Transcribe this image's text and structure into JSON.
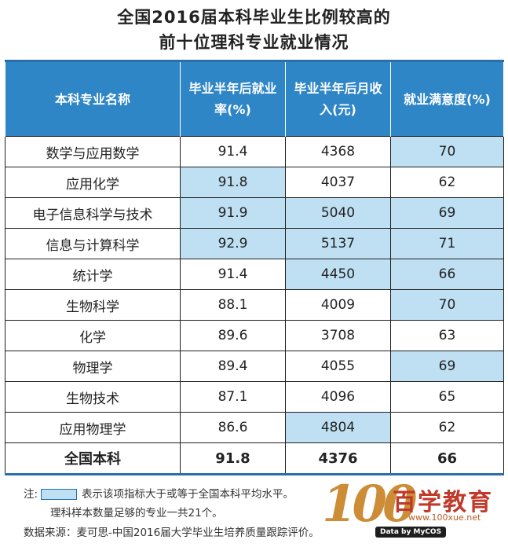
{
  "title": {
    "line1": "全国2016届本科毕业生比例较高的",
    "line2": "前十位理科专业就业情况"
  },
  "table": {
    "headers": [
      "本科专业名称",
      "毕业半年后就业率(%)",
      "毕业半年后月收入(元)",
      "就业满意度(%)"
    ],
    "rows": [
      {
        "name": "数学与应用数学",
        "rate": "91.4",
        "income": "4368",
        "satisfaction": "70"
      },
      {
        "name": "应用化学",
        "rate": "91.8",
        "income": "4037",
        "satisfaction": "62"
      },
      {
        "name": "电子信息科学与技术",
        "rate": "91.9",
        "income": "5040",
        "satisfaction": "69"
      },
      {
        "name": "信息与计算科学",
        "rate": "92.9",
        "income": "5137",
        "satisfaction": "71"
      },
      {
        "name": "统计学",
        "rate": "91.4",
        "income": "4450",
        "satisfaction": "66"
      },
      {
        "name": "生物科学",
        "rate": "88.1",
        "income": "4009",
        "satisfaction": "70"
      },
      {
        "name": "化学",
        "rate": "89.6",
        "income": "3708",
        "satisfaction": "63"
      },
      {
        "name": "物理学",
        "rate": "89.4",
        "income": "4055",
        "satisfaction": "69"
      },
      {
        "name": "生物技术",
        "rate": "87.1",
        "income": "4096",
        "satisfaction": "65"
      },
      {
        "name": "应用物理学",
        "rate": "86.6",
        "income": "4804",
        "satisfaction": "62"
      }
    ],
    "total": {
      "name": "全国本科",
      "rate": "91.8",
      "income": "4376",
      "satisfaction": "66"
    }
  },
  "notes": {
    "label": "注:",
    "legend_text": "表示该项指标大于或等于全国本科平均水平。",
    "sample_text": "理科样本数量足够的专业一共21个。",
    "source": "数据来源：麦可思-中国2016届大学毕业生培养质量跟踪评价。"
  },
  "logo": {
    "number": "100",
    "brand": "百学教育",
    "site": "www.100xue.net",
    "badge": "Data by MyCOS"
  },
  "colors": {
    "header_bg": "#2f86c6",
    "highlight": "#bfe0f3"
  },
  "chart_data": {
    "type": "table",
    "title": "全国2016届本科毕业生比例较高的前十位理科专业就业情况",
    "columns": [
      "本科专业名称",
      "毕业半年后就业率(%)",
      "毕业半年后月收入(元)",
      "就业满意度(%)"
    ],
    "rows": [
      [
        "数学与应用数学",
        91.4,
        4368,
        70
      ],
      [
        "应用化学",
        91.8,
        4037,
        62
      ],
      [
        "电子信息科学与技术",
        91.9,
        5040,
        69
      ],
      [
        "信息与计算科学",
        92.9,
        5137,
        71
      ],
      [
        "统计学",
        91.4,
        4450,
        66
      ],
      [
        "生物科学",
        88.1,
        4009,
        70
      ],
      [
        "化学",
        89.6,
        3708,
        63
      ],
      [
        "物理学",
        89.4,
        4055,
        69
      ],
      [
        "生物技术",
        87.1,
        4096,
        65
      ],
      [
        "应用物理学",
        86.6,
        4804,
        62
      ],
      [
        "全国本科",
        91.8,
        4376,
        66
      ]
    ],
    "highlighted": [
      {
        "row": "数学与应用数学",
        "columns": [
          "就业满意度(%)"
        ]
      },
      {
        "row": "应用化学",
        "columns": [
          "毕业半年后就业率(%)"
        ]
      },
      {
        "row": "电子信息科学与技术",
        "columns": [
          "毕业半年后就业率(%)",
          "毕业半年后月收入(元)",
          "就业满意度(%)"
        ]
      },
      {
        "row": "信息与计算科学",
        "columns": [
          "毕业半年后就业率(%)",
          "毕业半年后月收入(元)",
          "就业满意度(%)"
        ]
      },
      {
        "row": "统计学",
        "columns": [
          "毕业半年后月收入(元)",
          "就业满意度(%)"
        ]
      },
      {
        "row": "生物科学",
        "columns": [
          "就业满意度(%)"
        ]
      },
      {
        "row": "物理学",
        "columns": [
          "就业满意度(%)"
        ]
      },
      {
        "row": "应用物理学",
        "columns": [
          "毕业半年后月收入(元)"
        ]
      }
    ]
  }
}
